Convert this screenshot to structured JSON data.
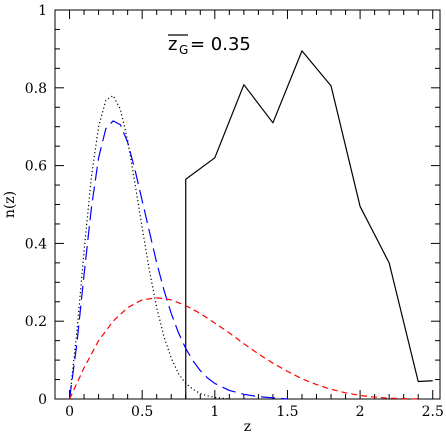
{
  "chart_data": {
    "type": "line",
    "xlabel": "z",
    "ylabel": "n(z)",
    "xlim": [
      -0.1,
      2.55
    ],
    "ylim": [
      0,
      1
    ],
    "grid": false,
    "x_ticks": [
      0,
      0.5,
      1,
      1.5,
      2,
      2.5
    ],
    "x_tick_labels": [
      "0",
      "0.5",
      "1",
      "1.5",
      "2",
      "2.5"
    ],
    "y_ticks": [
      0,
      0.2,
      0.4,
      0.6,
      0.8,
      1
    ],
    "y_tick_labels": [
      "0",
      "0.2",
      "0.4",
      "0.6",
      "0.8",
      "1"
    ],
    "annotation": {
      "symbol": "z",
      "subscript": "G",
      "text": "= 0.35"
    },
    "series": [
      {
        "style": "solid",
        "color": "#000000",
        "x": [
          0.8,
          0.8,
          1.0,
          1.2,
          1.4,
          1.6,
          1.8,
          2.0,
          2.2,
          2.4,
          2.5
        ],
        "y": [
          0.0,
          0.565,
          0.62,
          0.808,
          0.71,
          0.895,
          0.805,
          0.495,
          0.35,
          0.045,
          0.047
        ]
      },
      {
        "style": "dotted",
        "color": "#000000",
        "x": [
          0,
          0.05,
          0.1,
          0.15,
          0.2,
          0.25,
          0.3,
          0.35,
          0.4,
          0.45,
          0.5,
          0.55,
          0.6,
          0.65,
          0.7,
          0.75,
          0.8,
          0.85,
          0.9,
          0.95,
          1.0,
          1.05,
          1.1
        ],
        "y": [
          0,
          0.17,
          0.38,
          0.57,
          0.7,
          0.768,
          0.78,
          0.745,
          0.665,
          0.555,
          0.44,
          0.33,
          0.235,
          0.16,
          0.105,
          0.065,
          0.04,
          0.025,
          0.014,
          0.008,
          0.004,
          0.002,
          0.0
        ]
      },
      {
        "style": "long-dash",
        "color": "#0000ff",
        "x": [
          0,
          0.05,
          0.1,
          0.15,
          0.2,
          0.25,
          0.3,
          0.35,
          0.4,
          0.45,
          0.5,
          0.55,
          0.6,
          0.65,
          0.7,
          0.75,
          0.8,
          0.85,
          0.9,
          0.95,
          1.0,
          1.1,
          1.2,
          1.3,
          1.4,
          1.5
        ],
        "y": [
          0,
          0.14,
          0.32,
          0.49,
          0.62,
          0.695,
          0.715,
          0.705,
          0.66,
          0.59,
          0.51,
          0.43,
          0.35,
          0.28,
          0.22,
          0.17,
          0.13,
          0.098,
          0.073,
          0.054,
          0.04,
          0.022,
          0.012,
          0.006,
          0.003,
          0.0
        ]
      },
      {
        "style": "dashed",
        "color": "#ff0000",
        "x": [
          0,
          0.1,
          0.2,
          0.3,
          0.4,
          0.5,
          0.6,
          0.7,
          0.8,
          0.9,
          1.0,
          1.1,
          1.2,
          1.3,
          1.4,
          1.5,
          1.6,
          1.7,
          1.8,
          1.9,
          2.0,
          2.1,
          2.2,
          2.3,
          2.4
        ],
        "y": [
          0,
          0.08,
          0.15,
          0.2,
          0.235,
          0.255,
          0.26,
          0.255,
          0.24,
          0.22,
          0.195,
          0.17,
          0.142,
          0.116,
          0.092,
          0.071,
          0.052,
          0.037,
          0.025,
          0.016,
          0.009,
          0.005,
          0.002,
          0.001,
          0.0
        ]
      }
    ]
  }
}
